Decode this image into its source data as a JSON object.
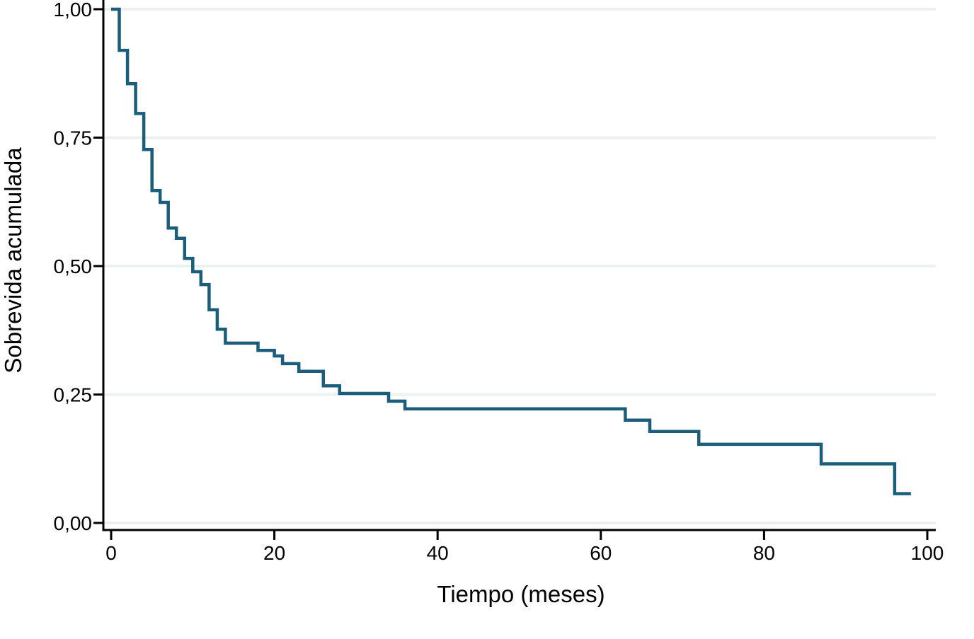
{
  "chart_data": {
    "type": "line",
    "subtype": "kaplan_meier_step_curve",
    "title": "",
    "xlabel": "Tiempo (meses)",
    "ylabel": "Sobrevida acumulada",
    "xlim": [
      0,
      101
    ],
    "ylim": [
      0,
      1.03
    ],
    "grid": "horizontal-only",
    "legend_position": "none",
    "decimal_separator": ",",
    "x_axis": {
      "tick_labels": [
        "0",
        "20",
        "40",
        "60",
        "80",
        "100"
      ],
      "tick_values": [
        0,
        20,
        40,
        60,
        80,
        100
      ]
    },
    "y_axis": {
      "tick_labels": [
        "0,00",
        "0,25",
        "0,50",
        "0,75",
        "1,00"
      ],
      "tick_values": [
        0,
        0.25,
        0.5,
        0.75,
        1
      ]
    },
    "series": [
      {
        "name": "Sobrevida acumulada",
        "step_points": [
          {
            "t": 0,
            "s": 1.0
          },
          {
            "t": 1,
            "s": 0.92
          },
          {
            "t": 2,
            "s": 0.855
          },
          {
            "t": 3,
            "s": 0.797
          },
          {
            "t": 4,
            "s": 0.727
          },
          {
            "t": 5,
            "s": 0.647
          },
          {
            "t": 6,
            "s": 0.624
          },
          {
            "t": 7,
            "s": 0.574
          },
          {
            "t": 8,
            "s": 0.554
          },
          {
            "t": 9,
            "s": 0.515
          },
          {
            "t": 10,
            "s": 0.489
          },
          {
            "t": 11,
            "s": 0.464
          },
          {
            "t": 12,
            "s": 0.415
          },
          {
            "t": 13,
            "s": 0.377
          },
          {
            "t": 14,
            "s": 0.35
          },
          {
            "t": 18,
            "s": 0.336
          },
          {
            "t": 20,
            "s": 0.325
          },
          {
            "t": 21,
            "s": 0.31
          },
          {
            "t": 23,
            "s": 0.295
          },
          {
            "t": 26,
            "s": 0.267
          },
          {
            "t": 28,
            "s": 0.252
          },
          {
            "t": 34,
            "s": 0.237
          },
          {
            "t": 36,
            "s": 0.222
          },
          {
            "t": 63,
            "s": 0.2
          },
          {
            "t": 66,
            "s": 0.178
          },
          {
            "t": 72,
            "s": 0.153
          },
          {
            "t": 87,
            "s": 0.115
          },
          {
            "t": 96,
            "s": 0.057
          }
        ],
        "curve_end_t": 98
      }
    ],
    "colors": {
      "line": "#1b5e7b",
      "grid": "#e9efed",
      "axis": "#000000",
      "background": "#ffffff"
    }
  }
}
